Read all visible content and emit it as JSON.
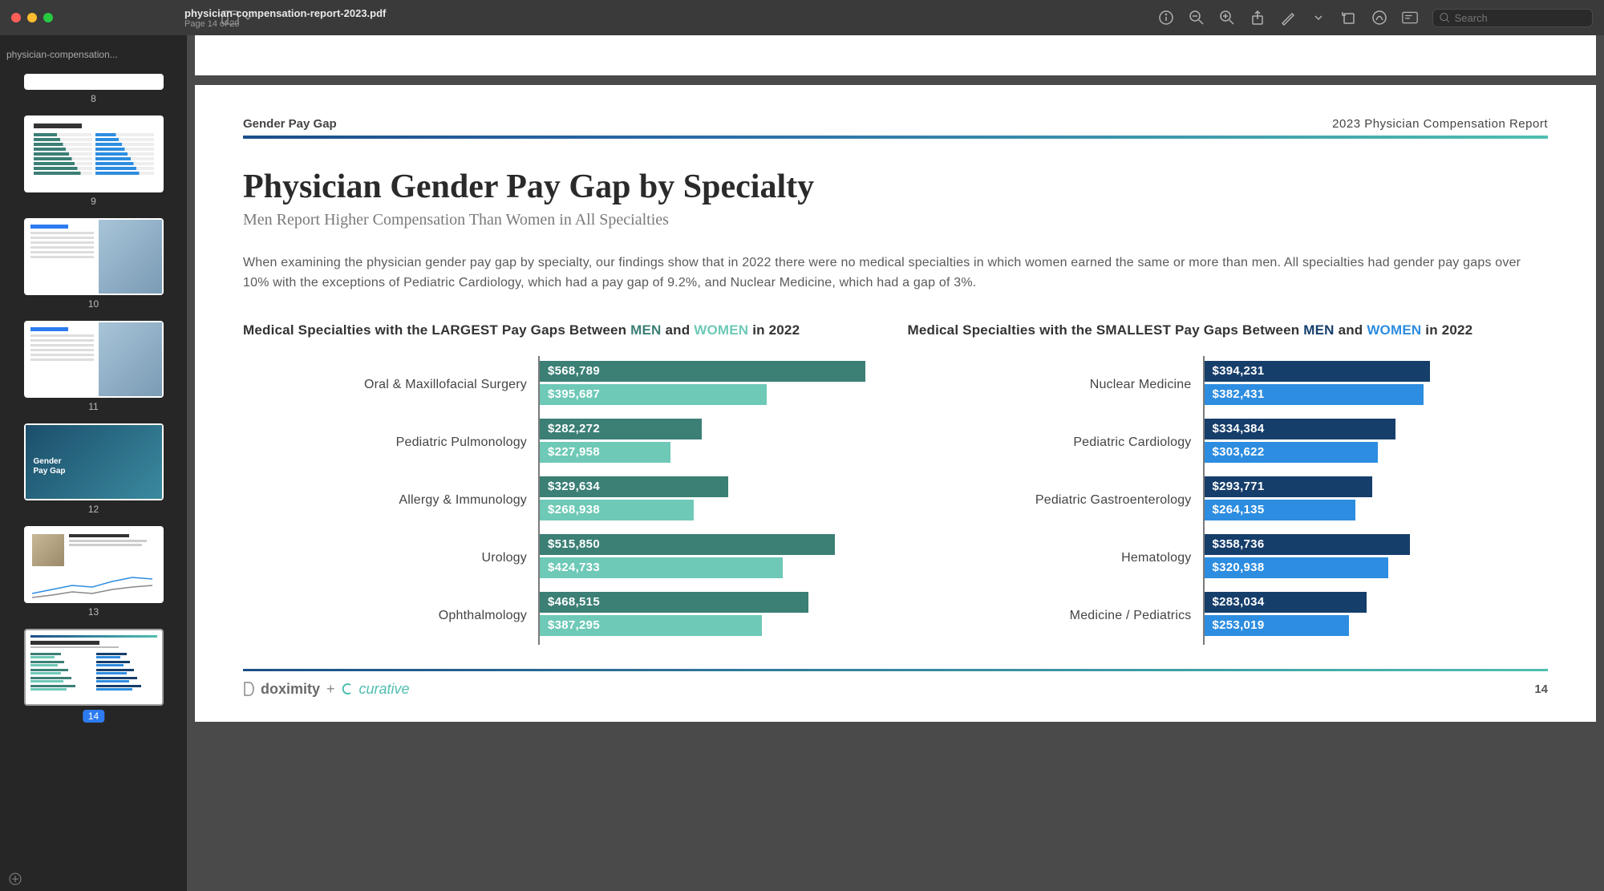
{
  "window": {
    "title": "physician-compensation-report-2023.pdf",
    "subtitle": "Page 14 of 29",
    "tab_name": "physician-compensation...",
    "search_placeholder": "Search"
  },
  "thumbnails": [
    {
      "page": "8",
      "kind": "hbars"
    },
    {
      "page": "9",
      "kind": "hbars"
    },
    {
      "page": "10",
      "kind": "photo-table"
    },
    {
      "page": "11",
      "kind": "photo-table"
    },
    {
      "page": "12",
      "kind": "cover",
      "cover_line1": "Gender",
      "cover_line2": "Pay Gap"
    },
    {
      "page": "13",
      "kind": "line-chart"
    },
    {
      "page": "14",
      "kind": "current",
      "active": true
    }
  ],
  "doc": {
    "runhead_left": "Gender Pay Gap",
    "runhead_right": "2023 Physician Compensation Report",
    "title": "Physician Gender Pay Gap by Specialty",
    "subtitle": "Men Report Higher Compensation Than Women in All Specialties",
    "body": "When examining the physician gender pay gap by specialty, our findings show that in 2022 there were no medical specialties in which women earned the same or more than men. All specialties had gender pay gaps over 10% with the exceptions of Pediatric Cardiology, which had a pay gap of 9.2%, and Nuclear Medicine, which had a gap of 3%.",
    "footer_brand1": "doximity",
    "footer_plus": "+",
    "footer_brand2": "curative",
    "page_number": "14"
  },
  "colors": {
    "left_men": "#3b7f75",
    "left_women": "#6ec9b7",
    "right_men": "#163e6b",
    "right_women": "#2d8de0",
    "men_text_left": "#3b7f75",
    "women_text_left": "#6ec9b7",
    "men_text_right": "#163e6b",
    "women_text_right": "#2d8de0"
  },
  "chart_left": {
    "title_prefix": "Medical Specialties with the LARGEST Pay Gaps Between ",
    "title_and": " and ",
    "title_suffix": " in 2022",
    "men_label": "MEN",
    "women_label": "WOMEN",
    "max_value": 600000,
    "rows": [
      {
        "label": "Oral & Maxillofacial Surgery",
        "men": 568789,
        "men_label": "$568,789",
        "women": 395687,
        "women_label": "$395,687"
      },
      {
        "label": "Pediatric Pulmonology",
        "men": 282272,
        "men_label": "$282,272",
        "women": 227958,
        "women_label": "$227,958"
      },
      {
        "label": "Allergy & Immunology",
        "men": 329634,
        "men_label": "$329,634",
        "women": 268938,
        "women_label": "$268,938"
      },
      {
        "label": "Urology",
        "men": 515850,
        "men_label": "$515,850",
        "women": 424733,
        "women_label": "$424,733"
      },
      {
        "label": "Ophthalmology",
        "men": 468515,
        "men_label": "$468,515",
        "women": 387295,
        "women_label": "$387,295"
      }
    ]
  },
  "chart_right": {
    "title_prefix": "Medical Specialties with the SMALLEST Pay Gaps Between ",
    "title_and": " and ",
    "title_suffix": " in 2022",
    "men_label": "MEN",
    "women_label": "WOMEN",
    "max_value": 600000,
    "rows": [
      {
        "label": "Nuclear Medicine",
        "men": 394231,
        "men_label": "$394,231",
        "women": 382431,
        "women_label": "$382,431"
      },
      {
        "label": "Pediatric Cardiology",
        "men": 334384,
        "men_label": "$334,384",
        "women": 303622,
        "women_label": "$303,622"
      },
      {
        "label": "Pediatric Gastroenterology",
        "men": 293771,
        "men_label": "$293,771",
        "women": 264135,
        "women_label": "$264,135"
      },
      {
        "label": "Hematology",
        "men": 358736,
        "men_label": "$358,736",
        "women": 320938,
        "women_label": "$320,938"
      },
      {
        "label": "Medicine / Pediatrics",
        "men": 283034,
        "men_label": "$283,034",
        "women": 253019,
        "women_label": "$253,019"
      }
    ]
  }
}
